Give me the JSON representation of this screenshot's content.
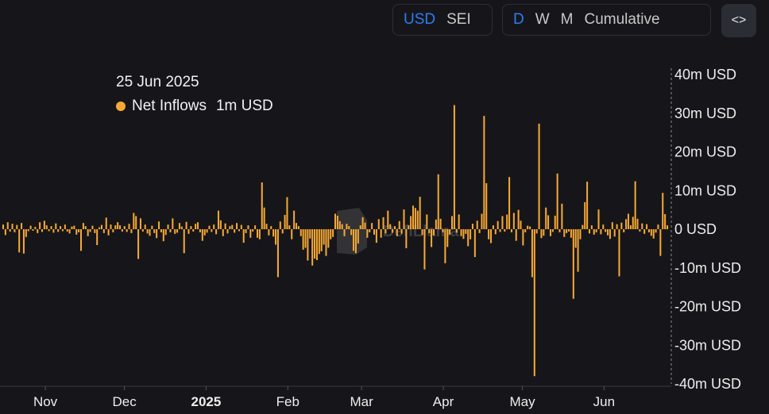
{
  "toolbar": {
    "currency": [
      {
        "label": "USD",
        "active": true
      },
      {
        "label": "SEI",
        "active": false
      }
    ],
    "period": [
      {
        "label": "D",
        "active": true
      },
      {
        "label": "W",
        "active": false
      },
      {
        "label": "M",
        "active": false
      },
      {
        "label": "Cumulative",
        "active": false
      }
    ],
    "embed_icon": "code-brackets-icon",
    "embed_label": "<>"
  },
  "tooltip": {
    "date": "25 Jun 2025",
    "series": "Net Inflows",
    "value": "1m USD",
    "dot_color": "#f7a933"
  },
  "watermark": "DefiLlama",
  "chart_data": {
    "type": "bar",
    "bar_color": "#f7a933",
    "ylim": [
      -40,
      40
    ],
    "y_ticks": [
      {
        "value": 40,
        "label": "40m USD"
      },
      {
        "value": 30,
        "label": "30m USD"
      },
      {
        "value": 20,
        "label": "20m USD"
      },
      {
        "value": 10,
        "label": "10m USD"
      },
      {
        "value": 0,
        "label": "0 USD"
      },
      {
        "value": -10,
        "label": "-10m USD"
      },
      {
        "value": -20,
        "label": "-20m USD"
      },
      {
        "value": -30,
        "label": "-30m USD"
      },
      {
        "value": -40,
        "label": "-40m USD"
      }
    ],
    "x_start": "2024-10-16",
    "x_end": "2025-06-25",
    "x_ticks": [
      {
        "date": "2024-11-01",
        "label": "Nov",
        "bold": false
      },
      {
        "date": "2024-12-01",
        "label": "Dec",
        "bold": false
      },
      {
        "date": "2025-01-01",
        "label": "2025",
        "bold": true
      },
      {
        "date": "2025-02-01",
        "label": "Feb",
        "bold": false
      },
      {
        "date": "2025-03-01",
        "label": "Mar",
        "bold": false
      },
      {
        "date": "2025-04-01",
        "label": "Apr",
        "bold": false
      },
      {
        "date": "2025-05-01",
        "label": "May",
        "bold": false
      },
      {
        "date": "2025-06-01",
        "label": "Jun",
        "bold": false
      }
    ],
    "values": [
      1.2,
      -1.5,
      1.8,
      -0.6,
      1.4,
      -0.8,
      1.1,
      -6.0,
      1.6,
      -6.3,
      -2.0,
      -0.5,
      0.9,
      -0.4,
      0.6,
      -1.0,
      1.8,
      -0.7,
      2.2,
      1.0,
      -0.5,
      0.8,
      -0.9,
      1.5,
      -0.7,
      0.8,
      -0.5,
      1.2,
      -0.6,
      -1.1,
      0.7,
      0.9,
      -1.4,
      -0.8,
      -5.6,
      1.6,
      0.8,
      -1.8,
      -0.7,
      0.9,
      -1.0,
      -4.1,
      0.5,
      1.1,
      -1.0,
      3.0,
      -1.6,
      1.2,
      -0.8,
      1.0,
      1.8,
      1.0,
      -0.6,
      0.8,
      -0.7,
      1.4,
      -1.0,
      4.2,
      3.4,
      -7.7,
      2.8,
      -0.6,
      1.2,
      -1.1,
      -1.7,
      0.9,
      -1.0,
      -2.3,
      2.0,
      -0.8,
      -3.1,
      -1.5,
      1.2,
      -0.8,
      2.8,
      -1.2,
      -0.9,
      1.6,
      0.7,
      -6.2,
      1.9,
      -1.2,
      0.8,
      -0.6,
      1.4,
      1.8,
      -0.8,
      -3.0,
      -1.6,
      -0.9,
      0.9,
      -0.7,
      1.2,
      -1.3,
      4.8,
      2.3,
      -1.8,
      1.5,
      -1.1,
      0.8,
      1.1,
      -0.9,
      1.6,
      -0.5,
      1.1,
      -3.5,
      -1.0,
      1.0,
      -2.2,
      -0.6,
      1.0,
      -2.2,
      -2.6,
      12.1,
      5.6,
      1.4,
      -1.6,
      0.8,
      -1.9,
      -4.0,
      -12.4,
      2.0,
      -1.1,
      3.7,
      8.3,
      1.0,
      -2.6,
      4.8,
      1.6,
      0.8,
      -1.8,
      -5.3,
      -4.8,
      -8.1,
      -2.4,
      -9.4,
      -7.6,
      -8.0,
      -6.4,
      -5.7,
      -4.0,
      -6.9,
      -4.8,
      -2.6,
      -2.0,
      4.0,
      3.5,
      2.1,
      1.3,
      -1.8,
      1.4,
      0.8,
      -1.5,
      -5.6,
      -6.2,
      -3.7,
      1.0,
      3.1,
      1.7,
      -2.2,
      -0.8,
      1.6,
      -1.4,
      -3.5,
      2.6,
      -2.2,
      3.1,
      -1.1,
      4.8,
      1.3,
      -0.9,
      0.8,
      -1.8,
      2.1,
      -1.2,
      5.1,
      -4.9,
      1.0,
      3.4,
      6.1,
      5.5,
      4.8,
      8.4,
      -1.5,
      -10.4,
      3.8,
      -1.0,
      -4.6,
      -1.6,
      2.5,
      14.2,
      2.7,
      -0.8,
      -8.8,
      -4.6,
      -1.4,
      3.4,
      32.1,
      -0.9,
      3.8,
      -1.8,
      -2.5,
      -1.2,
      -4.4,
      -2.6,
      1.4,
      -7.2,
      2.2,
      -1.0,
      4.0,
      29.3,
      11.9,
      -2.6,
      -3.6,
      1.0,
      -1.3,
      2.1,
      -0.7,
      3.4,
      -0.6,
      3.8,
      13.5,
      -0.8,
      4.2,
      -3.0,
      5.0,
      2.2,
      -4.2,
      -0.8,
      0.9,
      0.7,
      -12.4,
      -38.0,
      -1.1,
      27.3,
      -2.3,
      -1.7,
      5.6,
      3.6,
      -1.8,
      -0.7,
      3.5,
      14.4,
      -0.8,
      6.6,
      -2.0,
      -1.0,
      -0.6,
      -2.2,
      -18.0,
      -4.8,
      -11.0,
      -2.6,
      1.1,
      7.0,
      12.3,
      -1.1,
      1.0,
      -1.4,
      -0.8,
      5.1,
      -1.3,
      1.2,
      -0.7,
      -1.6,
      -2.5,
      1.8,
      -1.9,
      1.3,
      -12.2,
      1.7,
      -0.8,
      2.6,
      4.0,
      1.0,
      3.2,
      12.4,
      2.7,
      -0.6,
      1.5,
      -1.2,
      1.3,
      -0.8,
      -1.7,
      -2.4,
      -0.9,
      1.2,
      -6.9,
      9.4,
      3.9,
      1.0
    ]
  }
}
